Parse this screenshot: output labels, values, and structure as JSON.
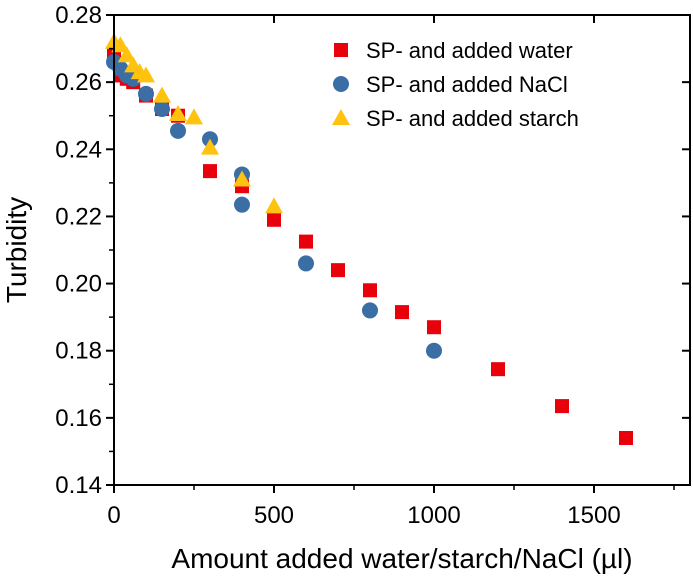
{
  "chart_data": {
    "type": "scatter",
    "title": "",
    "xlabel": "Amount added water/starch/NaCl (µl)",
    "ylabel": "Turbidity",
    "xlim": [
      0,
      1800
    ],
    "ylim": [
      0.14,
      0.28
    ],
    "xticks": [
      "0",
      "500",
      "1000",
      "1500"
    ],
    "xtick_values": [
      0,
      500,
      1000,
      1500
    ],
    "yticks": [
      "0.14",
      "0.16",
      "0.18",
      "0.20",
      "0.22",
      "0.24",
      "0.26",
      "0.28"
    ],
    "ytick_values": [
      0.14,
      0.16,
      0.18,
      0.2,
      0.22,
      0.24,
      0.26,
      0.28
    ],
    "grid": false,
    "legend_placement": "top-right",
    "series": [
      {
        "name": "SP- and added water",
        "marker": "square",
        "color": "#e8000b",
        "x": [
          0,
          20,
          40,
          60,
          100,
          150,
          200,
          300,
          400,
          500,
          600,
          700,
          800,
          900,
          1000,
          1200,
          1400,
          1600
        ],
        "y": [
          0.268,
          0.262,
          0.261,
          0.26,
          0.256,
          0.252,
          0.25,
          0.2335,
          0.229,
          0.219,
          0.2125,
          0.204,
          0.198,
          0.1915,
          0.187,
          0.1745,
          0.1635,
          0.154
        ]
      },
      {
        "name": "SP- and added NaCl",
        "marker": "circle",
        "color": "#3a6ea5",
        "x": [
          0,
          20,
          40,
          60,
          100,
          150,
          200,
          300,
          400,
          400,
          600,
          800,
          1000
        ],
        "y": [
          0.266,
          0.264,
          0.262,
          0.261,
          0.2565,
          0.252,
          0.2455,
          0.243,
          0.2325,
          0.2235,
          0.206,
          0.192,
          0.18
        ]
      },
      {
        "name": "SP- and added starch",
        "marker": "triangle",
        "color": "#ffc20e",
        "x": [
          0,
          20,
          40,
          60,
          80,
          100,
          150,
          200,
          250,
          300,
          400,
          500
        ],
        "y": [
          0.272,
          0.271,
          0.268,
          0.265,
          0.263,
          0.262,
          0.256,
          0.2505,
          0.2495,
          0.2405,
          0.231,
          0.223
        ]
      }
    ]
  }
}
